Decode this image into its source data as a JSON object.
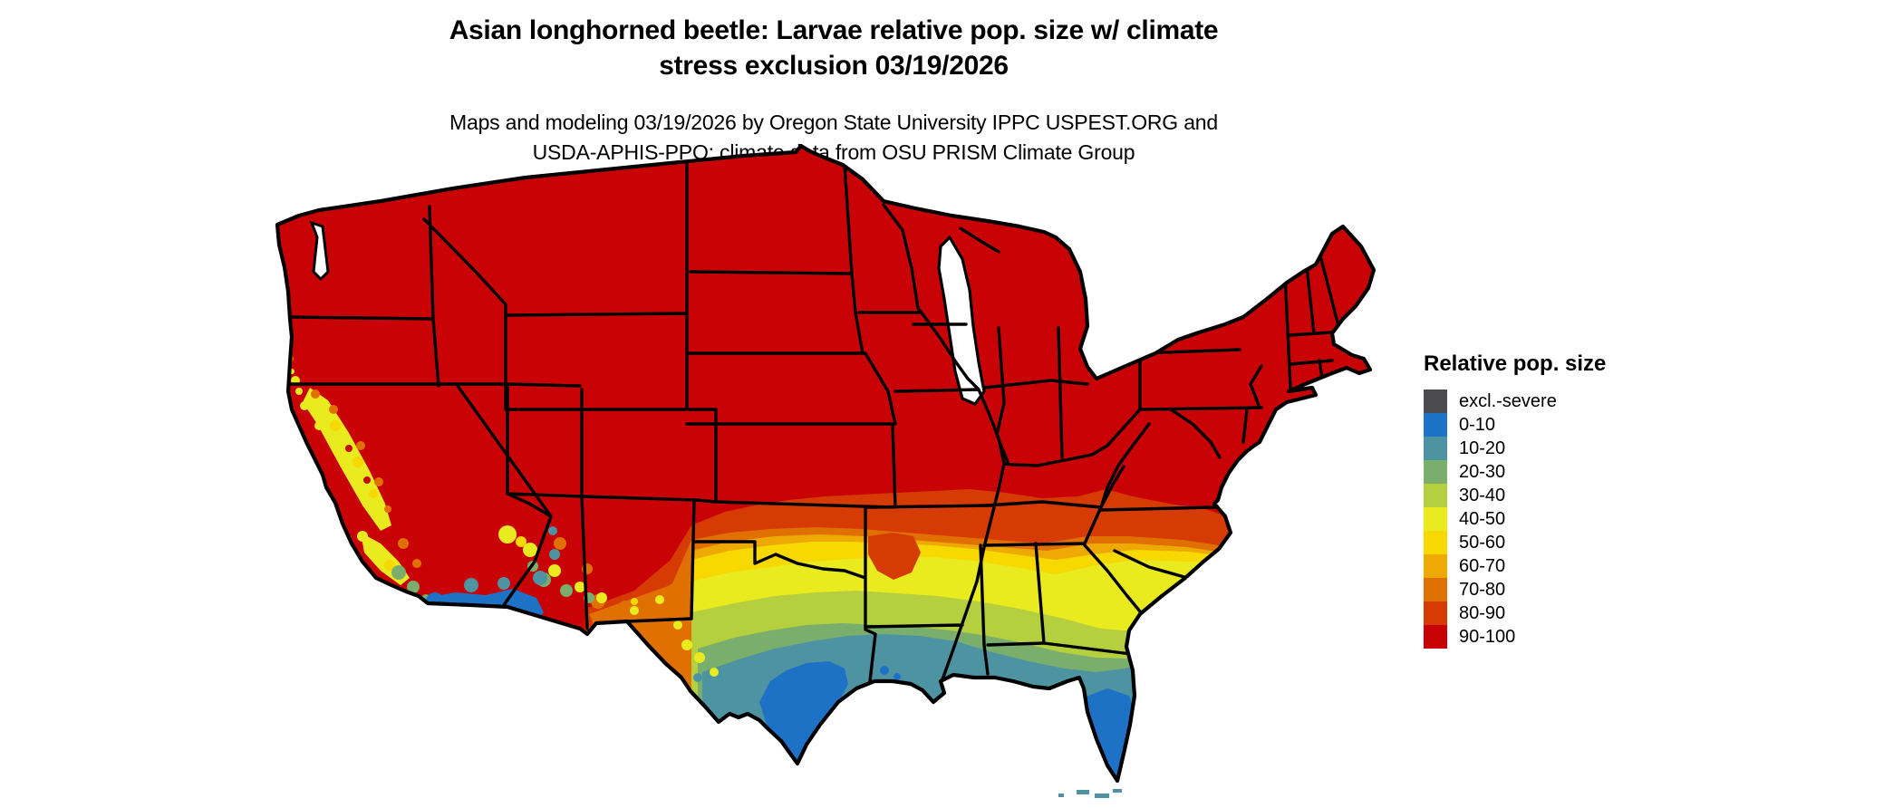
{
  "title": {
    "line1": "Asian longhorned beetle: Larvae relative pop. size w/ climate",
    "line2": "stress exclusion 03/19/2026"
  },
  "subtitle": {
    "line1": "Maps and modeling 03/19/2026 by Oregon State University IPPC USPEST.ORG and",
    "line2": "USDA-APHIS-PPQ; climate data from OSU PRISM Climate Group"
  },
  "legend": {
    "title": "Relative pop. size",
    "items": [
      {
        "label": "excl.-severe",
        "color": "#4C4C4E"
      },
      {
        "label": "0-10",
        "color": "#1D72C6"
      },
      {
        "label": "10-20",
        "color": "#4E93A2"
      },
      {
        "label": "20-30",
        "color": "#79AE6C"
      },
      {
        "label": "30-40",
        "color": "#B5CF3E"
      },
      {
        "label": "40-50",
        "color": "#E9EB1E"
      },
      {
        "label": "50-60",
        "color": "#F7D800"
      },
      {
        "label": "60-70",
        "color": "#EEA904"
      },
      {
        "label": "70-80",
        "color": "#E17003"
      },
      {
        "label": "80-90",
        "color": "#D53B02"
      },
      {
        "label": "90-100",
        "color": "#C90305"
      }
    ]
  },
  "colors": {
    "map_base": "#C90305",
    "excl": "#4C4C4E",
    "band_0_10": "#1D72C6",
    "band_10_20": "#4E93A2",
    "band_20_30": "#79AE6C",
    "band_30_40": "#B5CF3E",
    "band_40_50": "#E9EB1E",
    "band_50_60": "#F7D800",
    "band_60_70": "#EEA904",
    "band_70_80": "#E17003",
    "band_80_90": "#D53B02",
    "band_90_100": "#C90305",
    "border": "#000000",
    "water": "#FFFFFF"
  }
}
